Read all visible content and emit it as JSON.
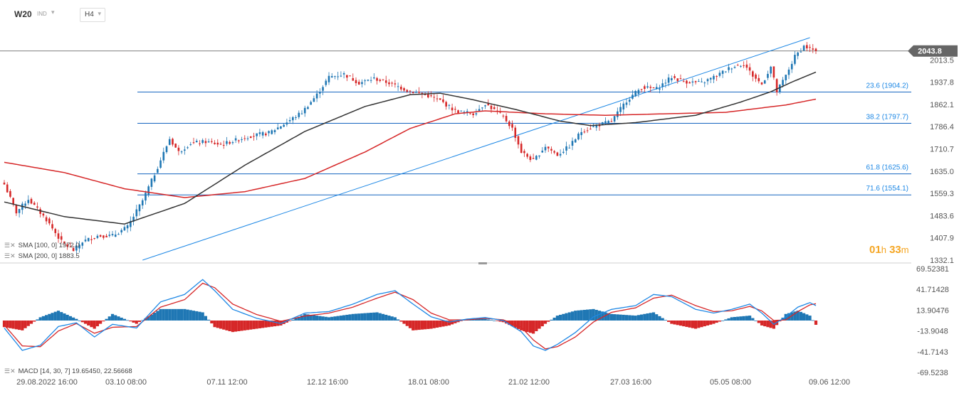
{
  "header": {
    "symbol": "W20",
    "exchange": "IND",
    "timeframe": "H4"
  },
  "countdown": {
    "hours": "01",
    "h_unit": "h",
    "minutes": "33",
    "m_unit": "m"
  },
  "indicators": {
    "sma100": "SMA [100, 0] 1972.0",
    "sma200": "SMA [200, 0] 1883.5",
    "macd": "MACD [14, 30, 7] 19.65450,  22.56668"
  },
  "colors": {
    "up": "#1f77b4",
    "down": "#d62728",
    "sma100": "#333333",
    "sma200": "#d62728",
    "fib": "#1565c0",
    "trend": "#1e88e5",
    "price_tag": "#666666",
    "macd_line": "#1e88e5",
    "signal_line": "#d62728"
  },
  "chart_data": [
    {
      "type": "candlestick",
      "title": "",
      "ylim": [
        1332.1,
        2089.1
      ],
      "y_ticks": [
        "2013.5",
        "1937.8",
        "1862.1",
        "1786.4",
        "1710.7",
        "1635.0",
        "1559.3",
        "1483.6",
        "1407.9",
        "1332.1"
      ],
      "x_ticks": [
        "29.08.2022  16:00",
        "03.10  08:00",
        "07.11  12:00",
        "12.12  16:00",
        "18.01  08:00",
        "21.02  12:00",
        "27.03  16:00",
        "05.05  08:00",
        "09.06  12:00"
      ],
      "last_price": "2043.8",
      "fib_levels": [
        {
          "label": "23.6 (1904.2)",
          "value": 1904.2
        },
        {
          "label": "38.2 (1797.7)",
          "value": 1797.7
        },
        {
          "label": "61.8 (1625.6)",
          "value": 1625.6
        },
        {
          "label": "71.6 (1554.1)",
          "value": 1554.1
        }
      ],
      "close_anchors": [
        [
          0,
          1590
        ],
        [
          4,
          1495
        ],
        [
          8,
          1540
        ],
        [
          14,
          1470
        ],
        [
          19,
          1395
        ],
        [
          23,
          1365
        ],
        [
          26,
          1395
        ],
        [
          31,
          1415
        ],
        [
          36,
          1415
        ],
        [
          41,
          1445
        ],
        [
          46,
          1535
        ],
        [
          50,
          1625
        ],
        [
          55,
          1745
        ],
        [
          58,
          1700
        ],
        [
          62,
          1730
        ],
        [
          67,
          1735
        ],
        [
          72,
          1725
        ],
        [
          77,
          1740
        ],
        [
          82,
          1755
        ],
        [
          88,
          1765
        ],
        [
          93,
          1795
        ],
        [
          99,
          1835
        ],
        [
          104,
          1895
        ],
        [
          108,
          1955
        ],
        [
          113,
          1965
        ],
        [
          118,
          1935
        ],
        [
          123,
          1950
        ],
        [
          128,
          1935
        ],
        [
          134,
          1910
        ],
        [
          140,
          1895
        ],
        [
          145,
          1875
        ],
        [
          150,
          1840
        ],
        [
          156,
          1830
        ],
        [
          160,
          1865
        ],
        [
          166,
          1820
        ],
        [
          169,
          1780
        ],
        [
          172,
          1700
        ],
        [
          176,
          1670
        ],
        [
          180,
          1720
        ],
        [
          184,
          1690
        ],
        [
          188,
          1720
        ],
        [
          192,
          1770
        ],
        [
          197,
          1790
        ],
        [
          202,
          1805
        ],
        [
          207,
          1875
        ],
        [
          212,
          1920
        ],
        [
          217,
          1915
        ],
        [
          222,
          1955
        ],
        [
          226,
          1940
        ],
        [
          232,
          1935
        ],
        [
          237,
          1960
        ],
        [
          242,
          1990
        ],
        [
          246,
          2000
        ],
        [
          249,
          1960
        ],
        [
          252,
          1930
        ],
        [
          255,
          1990
        ],
        [
          257,
          1905
        ],
        [
          260,
          1960
        ],
        [
          263,
          2025
        ],
        [
          266,
          2060
        ],
        [
          270,
          2043.8
        ]
      ],
      "sma100_anchors": [
        [
          0,
          1530
        ],
        [
          20,
          1480
        ],
        [
          40,
          1455
        ],
        [
          60,
          1525
        ],
        [
          80,
          1655
        ],
        [
          100,
          1770
        ],
        [
          120,
          1855
        ],
        [
          135,
          1895
        ],
        [
          145,
          1900
        ],
        [
          155,
          1880
        ],
        [
          170,
          1845
        ],
        [
          185,
          1805
        ],
        [
          195,
          1790
        ],
        [
          210,
          1800
        ],
        [
          230,
          1825
        ],
        [
          245,
          1870
        ],
        [
          255,
          1905
        ],
        [
          262,
          1938
        ],
        [
          270,
          1972
        ]
      ],
      "sma200_anchors": [
        [
          0,
          1665
        ],
        [
          20,
          1630
        ],
        [
          40,
          1575
        ],
        [
          60,
          1545
        ],
        [
          80,
          1565
        ],
        [
          100,
          1610
        ],
        [
          120,
          1700
        ],
        [
          135,
          1780
        ],
        [
          150,
          1830
        ],
        [
          160,
          1840
        ],
        [
          180,
          1830
        ],
        [
          200,
          1825
        ],
        [
          220,
          1830
        ],
        [
          240,
          1835
        ],
        [
          260,
          1860
        ],
        [
          270,
          1880
        ]
      ],
      "trendline": [
        [
          46,
          1332.1
        ],
        [
          268,
          2089.1
        ]
      ]
    },
    {
      "type": "macd",
      "ylim": [
        -69.5238,
        69.52381
      ],
      "y_ticks": [
        "69.52381",
        "41.71428",
        "13.90476",
        "-13.9048",
        "-41.7143",
        "-69.5238"
      ],
      "macd_anchors": [
        [
          0,
          -10
        ],
        [
          6,
          -40
        ],
        [
          12,
          -33
        ],
        [
          18,
          -8
        ],
        [
          24,
          -3
        ],
        [
          30,
          -22
        ],
        [
          36,
          -5
        ],
        [
          44,
          -10
        ],
        [
          52,
          25
        ],
        [
          60,
          35
        ],
        [
          66,
          55
        ],
        [
          70,
          40
        ],
        [
          76,
          15
        ],
        [
          84,
          3
        ],
        [
          92,
          -4
        ],
        [
          100,
          10
        ],
        [
          108,
          12
        ],
        [
          116,
          22
        ],
        [
          124,
          35
        ],
        [
          130,
          40
        ],
        [
          136,
          22
        ],
        [
          142,
          5
        ],
        [
          148,
          -2
        ],
        [
          154,
          2
        ],
        [
          160,
          4
        ],
        [
          166,
          0
        ],
        [
          172,
          -15
        ],
        [
          176,
          -34
        ],
        [
          180,
          -40
        ],
        [
          184,
          -32
        ],
        [
          190,
          -16
        ],
        [
          196,
          5
        ],
        [
          202,
          15
        ],
        [
          210,
          20
        ],
        [
          216,
          35
        ],
        [
          222,
          32
        ],
        [
          230,
          15
        ],
        [
          236,
          10
        ],
        [
          242,
          15
        ],
        [
          248,
          22
        ],
        [
          252,
          10
        ],
        [
          256,
          -5
        ],
        [
          260,
          5
        ],
        [
          264,
          18
        ],
        [
          268,
          24
        ],
        [
          270,
          20
        ]
      ],
      "signal_anchors": [
        [
          0,
          -6
        ],
        [
          6,
          -34
        ],
        [
          12,
          -35
        ],
        [
          18,
          -14
        ],
        [
          24,
          -4
        ],
        [
          30,
          -17
        ],
        [
          36,
          -9
        ],
        [
          44,
          -8
        ],
        [
          52,
          18
        ],
        [
          60,
          28
        ],
        [
          66,
          50
        ],
        [
          70,
          44
        ],
        [
          76,
          22
        ],
        [
          84,
          8
        ],
        [
          92,
          -1
        ],
        [
          100,
          6
        ],
        [
          108,
          10
        ],
        [
          116,
          18
        ],
        [
          124,
          30
        ],
        [
          130,
          38
        ],
        [
          136,
          28
        ],
        [
          142,
          10
        ],
        [
          148,
          1
        ],
        [
          154,
          1
        ],
        [
          160,
          3
        ],
        [
          166,
          1
        ],
        [
          172,
          -9
        ],
        [
          176,
          -26
        ],
        [
          180,
          -38
        ],
        [
          184,
          -35
        ],
        [
          190,
          -22
        ],
        [
          196,
          -2
        ],
        [
          202,
          11
        ],
        [
          210,
          17
        ],
        [
          216,
          30
        ],
        [
          222,
          34
        ],
        [
          230,
          20
        ],
        [
          236,
          12
        ],
        [
          242,
          13
        ],
        [
          248,
          19
        ],
        [
          252,
          13
        ],
        [
          256,
          0
        ],
        [
          260,
          1
        ],
        [
          264,
          12
        ],
        [
          268,
          21
        ],
        [
          270,
          22.6
        ]
      ]
    }
  ]
}
